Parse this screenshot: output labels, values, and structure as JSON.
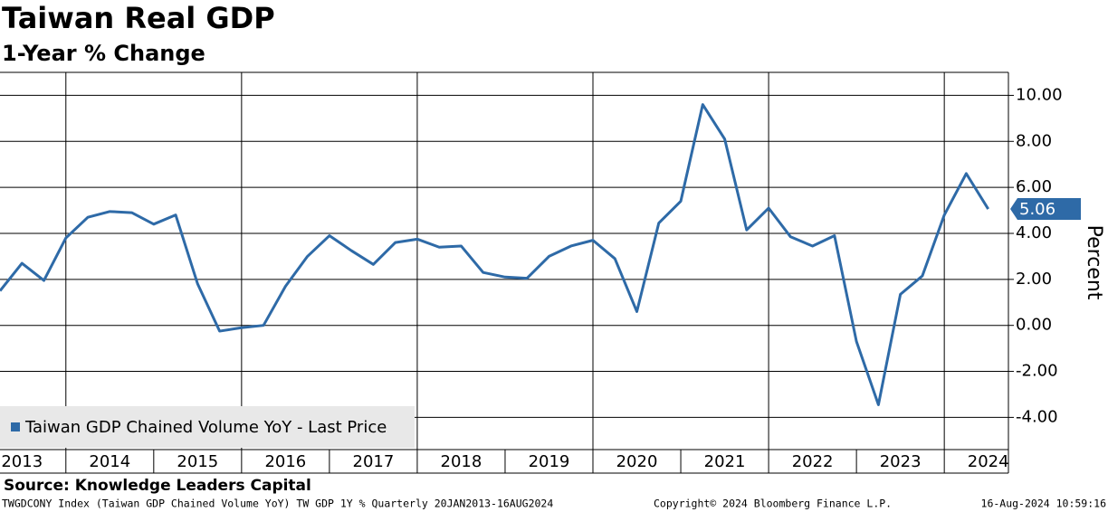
{
  "chart_data": {
    "type": "line",
    "title": "Taiwan Real GDP",
    "subtitle": "1-Year % Change",
    "y_label": "Percent",
    "source": "Source: Knowledge Leaders Capital",
    "footer_left": "TWGDCONY Index (Taiwan GDP Chained Volume YoY) TW GDP 1Y %  Quarterly 20JAN2013-16AUG2024",
    "footer_center": "Copyright© 2024 Bloomberg Finance L.P.",
    "footer_right": "16-Aug-2024 10:59:16",
    "legend_position": "lower-left",
    "x": [
      2013.25,
      2013.5,
      2013.75,
      2014,
      2014.25,
      2014.5,
      2014.75,
      2015,
      2015.25,
      2015.5,
      2015.75,
      2016,
      2016.25,
      2016.5,
      2016.75,
      2017,
      2017.25,
      2017.5,
      2017.75,
      2018,
      2018.25,
      2018.5,
      2018.75,
      2019,
      2019.25,
      2019.5,
      2019.75,
      2020,
      2020.25,
      2020.5,
      2020.75,
      2021,
      2021.25,
      2021.5,
      2021.75,
      2022,
      2022.25,
      2022.5,
      2022.75,
      2023,
      2023.25,
      2023.5,
      2023.75,
      2024,
      2024.25,
      2024.5
    ],
    "series": [
      {
        "name": "Taiwan GDP Chained Volume YoY - Last Price",
        "color": "#2e6aa7",
        "values": [
          1.5,
          2.7,
          1.95,
          3.8,
          4.7,
          4.95,
          4.9,
          4.4,
          4.8,
          1.8,
          -0.25,
          -0.1,
          0.0,
          1.7,
          3.0,
          3.9,
          3.25,
          2.65,
          3.6,
          3.75,
          3.4,
          3.45,
          2.3,
          2.1,
          2.05,
          3.0,
          3.45,
          3.7,
          2.9,
          0.6,
          4.45,
          5.4,
          9.6,
          8.1,
          4.15,
          5.1,
          3.85,
          3.45,
          3.9,
          -0.7,
          -3.45,
          1.35,
          2.15,
          4.8,
          6.6,
          5.06
        ]
      }
    ],
    "xlim": [
      2013.25,
      2024.73
    ],
    "xticks": [
      {
        "value": 2013.5,
        "label": "2013"
      },
      {
        "value": 2014.5,
        "label": "2014"
      },
      {
        "value": 2015.5,
        "label": "2015"
      },
      {
        "value": 2016.5,
        "label": "2016"
      },
      {
        "value": 2017.5,
        "label": "2017"
      },
      {
        "value": 2018.5,
        "label": "2018"
      },
      {
        "value": 2019.5,
        "label": "2019"
      },
      {
        "value": 2020.5,
        "label": "2020"
      },
      {
        "value": 2021.5,
        "label": "2021"
      },
      {
        "value": 2022.5,
        "label": "2022"
      },
      {
        "value": 2023.5,
        "label": "2023"
      },
      {
        "value": 2024.5,
        "label": "2024"
      }
    ],
    "x_gridlines": [
      2014,
      2016,
      2018,
      2020,
      2022,
      2024
    ],
    "ylim": [
      -5.4,
      11
    ],
    "yticks": [
      {
        "value": -4,
        "label": "-4.00"
      },
      {
        "value": -2,
        "label": "-2.00"
      },
      {
        "value": 0,
        "label": "0.00"
      },
      {
        "value": 2,
        "label": "2.00"
      },
      {
        "value": 4,
        "label": "4.00"
      },
      {
        "value": 6,
        "label": "6.00"
      },
      {
        "value": 8,
        "label": "8.00"
      },
      {
        "value": 10,
        "label": "10.00"
      }
    ],
    "grid": true
  }
}
